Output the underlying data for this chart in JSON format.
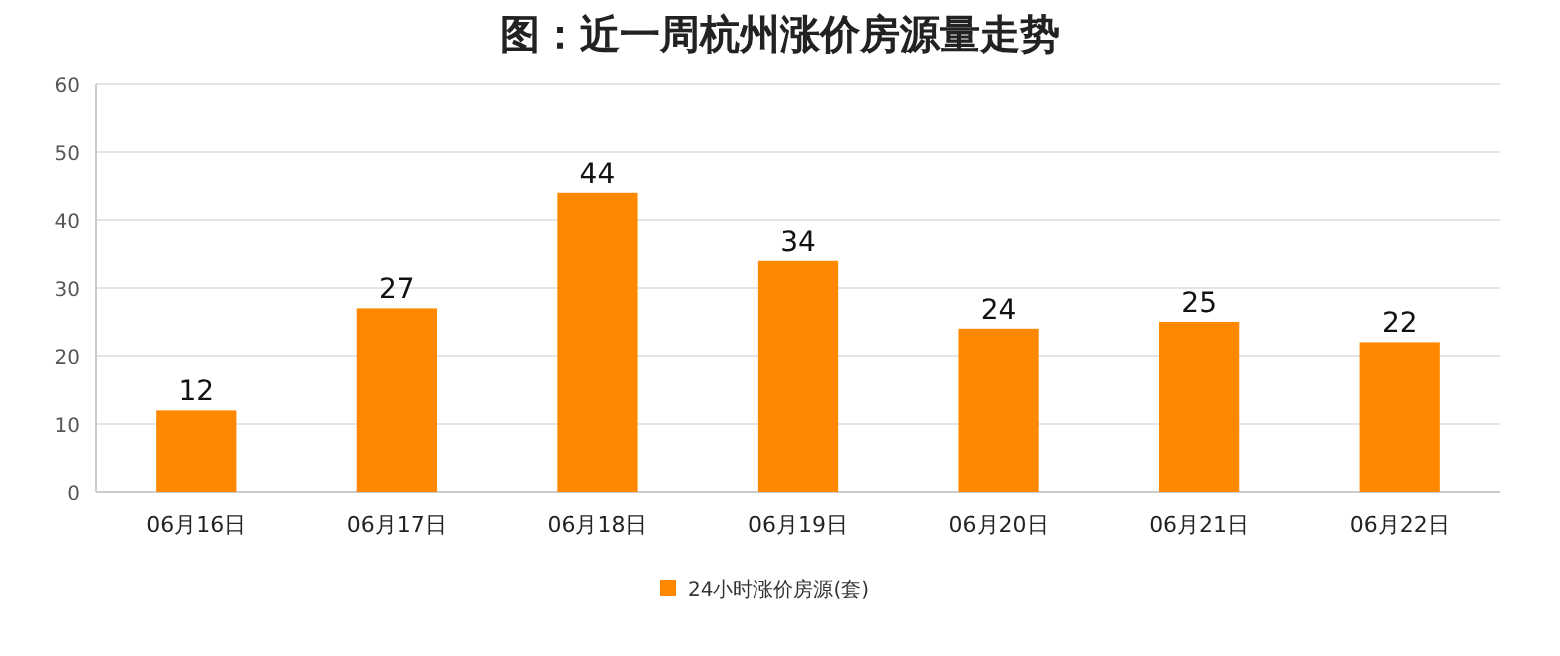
{
  "chart_data": {
    "type": "bar",
    "title": "图：近一周杭州涨价房源量走势",
    "categories": [
      "06月16日",
      "06月17日",
      "06月18日",
      "06月19日",
      "06月20日",
      "06月21日",
      "06月22日"
    ],
    "series": [
      {
        "name": "24小时涨价房源(套)",
        "color": "#ff8800",
        "values": [
          12,
          27,
          44,
          34,
          24,
          25,
          22
        ]
      }
    ],
    "ylim": [
      0,
      60
    ],
    "yticks": [
      0,
      10,
      20,
      30,
      40,
      50,
      60
    ],
    "grid": "y",
    "legend": "bottom",
    "data_labels": true
  }
}
